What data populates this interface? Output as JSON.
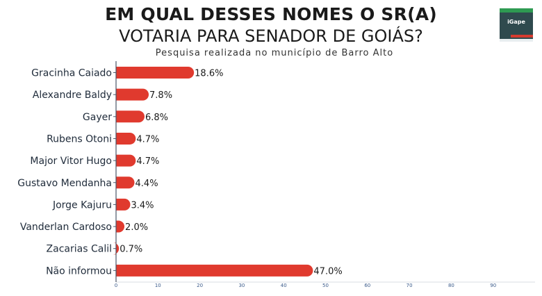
{
  "header": {
    "title_line1": "EM QUAL DESSES NOMES O SR(A)",
    "title_line2": "VOTARIA PARA SENADOR DE GOIÁS?",
    "subtitle": "Pesquisa realizada no município de Barro Alto"
  },
  "logo": {
    "text": "iGape",
    "colors": {
      "background": "#2f4a4e",
      "green": "#2e9a52",
      "red": "#d63b2f"
    }
  },
  "chart_data": {
    "type": "bar",
    "orientation": "horizontal",
    "categories": [
      "Gracinha Caiado",
      "Alexandre Baldy",
      "Gayer",
      "Rubens Otoni",
      "Major Vitor Hugo",
      "Gustavo Mendanha",
      "Jorge Kajuru",
      "Vanderlan Cardoso",
      "Zacarias Calil",
      "Não informou"
    ],
    "values": [
      18.6,
      7.8,
      6.8,
      4.7,
      4.7,
      4.4,
      3.4,
      2.0,
      0.7,
      47.0
    ],
    "value_labels": [
      "18.6%",
      "7.8%",
      "6.8%",
      "4.7%",
      "4.7%",
      "4.4%",
      "3.4%",
      "2.0%",
      "0.7%",
      "47.0%"
    ],
    "x_ticks": [
      "0",
      "10",
      "20",
      "30",
      "40",
      "50",
      "60",
      "70",
      "80",
      "90"
    ],
    "xlim": [
      0,
      100
    ],
    "bar_color": "#e03a2e",
    "grid": false,
    "legend": "none"
  }
}
